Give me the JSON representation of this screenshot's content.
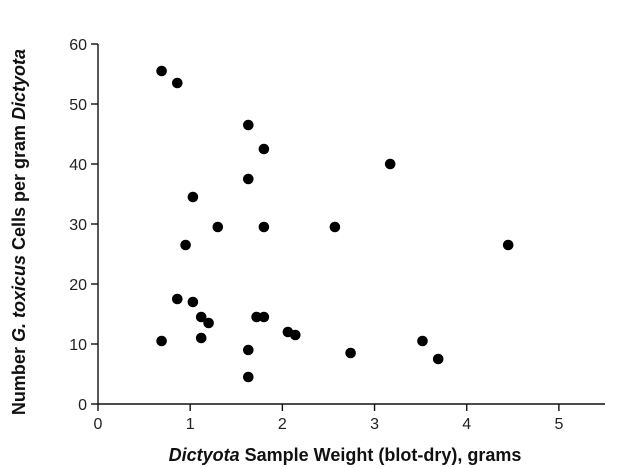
{
  "chart_data": {
    "type": "scatter",
    "xlabel_italic": "Dictyota",
    "xlabel_rest": " Sample Weight (blot-dry), grams",
    "ylabel_parts": [
      {
        "text": "Number ",
        "italic": false
      },
      {
        "text": "G. toxicus",
        "italic": true
      },
      {
        "text": " Cells per gram ",
        "italic": false
      },
      {
        "text": "Dictyota",
        "italic": true
      }
    ],
    "xlim": [
      0,
      5.5
    ],
    "ylim": [
      0,
      60
    ],
    "xticks": [
      0,
      1,
      2,
      3,
      4,
      5
    ],
    "yticks": [
      0,
      10,
      20,
      30,
      40,
      50,
      60
    ],
    "xtick_labels": [
      "0",
      "1",
      "2",
      "3",
      "4",
      "5"
    ],
    "ytick_labels": [
      "0",
      "10",
      "20",
      "30",
      "40",
      "50",
      "60"
    ],
    "grid": false,
    "marker_color": "#000000",
    "points": [
      {
        "x": 0.69,
        "y": 55.5
      },
      {
        "x": 0.86,
        "y": 53.5
      },
      {
        "x": 1.63,
        "y": 46.5
      },
      {
        "x": 1.8,
        "y": 42.5
      },
      {
        "x": 3.17,
        "y": 40.0
      },
      {
        "x": 1.63,
        "y": 37.5
      },
      {
        "x": 1.03,
        "y": 34.5
      },
      {
        "x": 1.3,
        "y": 29.5
      },
      {
        "x": 1.8,
        "y": 29.5
      },
      {
        "x": 2.57,
        "y": 29.5
      },
      {
        "x": 0.95,
        "y": 26.5
      },
      {
        "x": 4.45,
        "y": 26.5
      },
      {
        "x": 0.86,
        "y": 17.5
      },
      {
        "x": 1.03,
        "y": 17.0
      },
      {
        "x": 1.12,
        "y": 14.5
      },
      {
        "x": 1.72,
        "y": 14.5
      },
      {
        "x": 1.8,
        "y": 14.5
      },
      {
        "x": 1.2,
        "y": 13.5
      },
      {
        "x": 2.06,
        "y": 12.0
      },
      {
        "x": 2.14,
        "y": 11.5
      },
      {
        "x": 1.12,
        "y": 11.0
      },
      {
        "x": 0.69,
        "y": 10.5
      },
      {
        "x": 3.52,
        "y": 10.5
      },
      {
        "x": 1.63,
        "y": 9.0
      },
      {
        "x": 2.74,
        "y": 8.5
      },
      {
        "x": 3.69,
        "y": 7.5
      },
      {
        "x": 1.63,
        "y": 4.5
      }
    ]
  }
}
